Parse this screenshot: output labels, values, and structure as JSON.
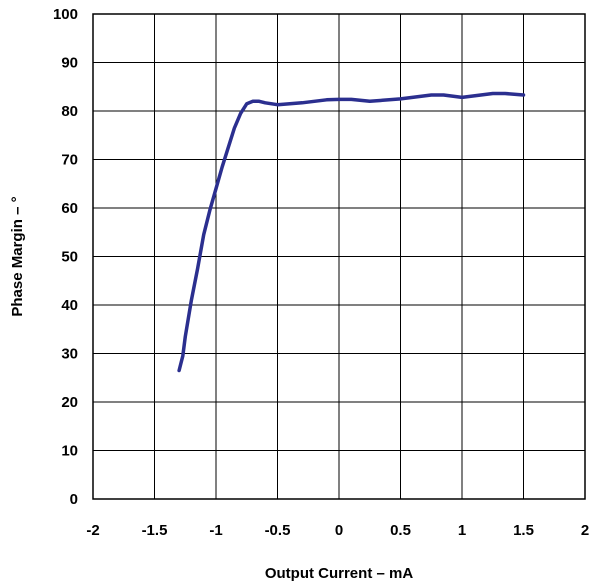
{
  "chart_data": {
    "type": "line",
    "title": "",
    "xlabel": "Output Current – mA",
    "ylabel": "Phase Margin – °",
    "xlim": [
      -2,
      2
    ],
    "ylim": [
      0,
      100
    ],
    "x_ticks": [
      -2,
      -1.5,
      -1,
      -0.5,
      0,
      0.5,
      1,
      1.5,
      2
    ],
    "x_tick_labels": [
      "-2",
      "-1.5",
      "-1",
      "-0.5",
      "0",
      "0.5",
      "1",
      "1.5",
      "2"
    ],
    "y_ticks": [
      0,
      10,
      20,
      30,
      40,
      50,
      60,
      70,
      80,
      90,
      100
    ],
    "y_tick_labels": [
      "0",
      "10",
      "20",
      "30",
      "40",
      "50",
      "60",
      "70",
      "80",
      "90",
      "100"
    ],
    "grid": true,
    "series_color": "#2b2f8f",
    "series": [
      {
        "x": [
          -1.3,
          -1.27,
          -1.25,
          -1.2,
          -1.15,
          -1.1,
          -1.05,
          -1.0,
          -0.95,
          -0.9,
          -0.85,
          -0.8,
          -0.75,
          -0.7,
          -0.65,
          -0.6,
          -0.5,
          -0.3,
          -0.1,
          0.0,
          0.1,
          0.25,
          0.5,
          0.75,
          0.85,
          1.0,
          1.25,
          1.35,
          1.5
        ],
        "y": [
          26.5,
          29.5,
          33.5,
          41.0,
          47.5,
          54.5,
          59.5,
          64.0,
          68.5,
          72.5,
          76.5,
          79.5,
          81.5,
          82.0,
          82.0,
          81.7,
          81.3,
          81.7,
          82.3,
          82.4,
          82.4,
          82.0,
          82.5,
          83.3,
          83.3,
          82.8,
          83.6,
          83.6,
          83.3
        ]
      }
    ]
  }
}
